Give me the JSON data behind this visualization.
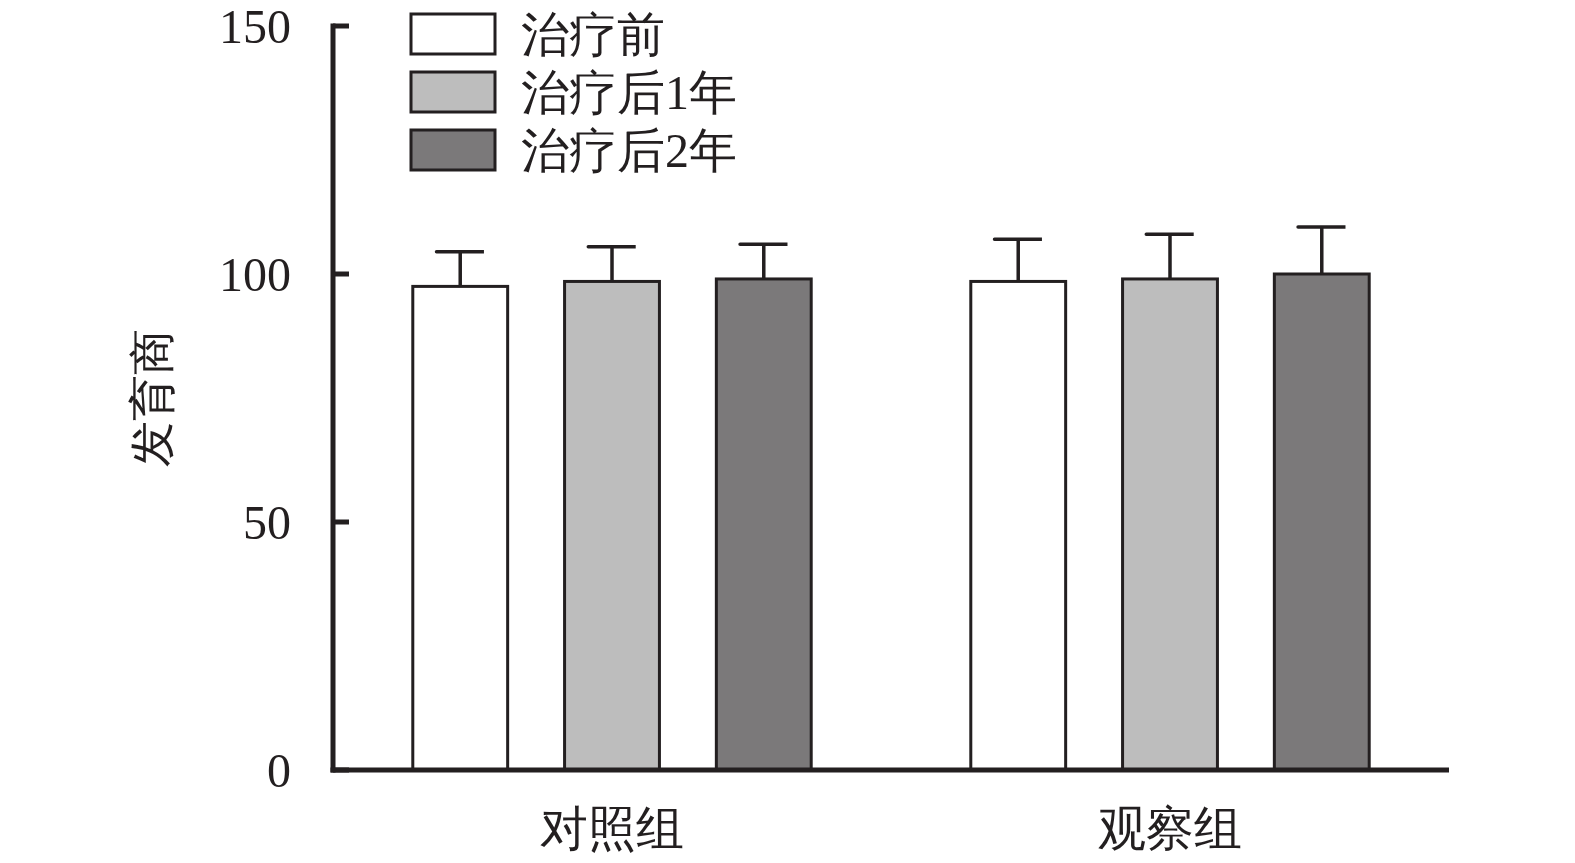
{
  "chart_data": {
    "type": "bar",
    "ylabel": "发育商",
    "categories": [
      "对照组",
      "观察组"
    ],
    "ylim": [
      0,
      150
    ],
    "yticks": [
      0,
      50,
      100,
      150
    ],
    "legend": "top left",
    "series": [
      {
        "name": "治疗前",
        "color": "#ffffff",
        "values": [
          97.5,
          98.5
        ],
        "errors": [
          [
            97.5,
            104.5
          ],
          [
            98.5,
            107
          ]
        ]
      },
      {
        "name": "治疗后1年",
        "color": "#bdbdbd",
        "values": [
          98.5,
          99
        ],
        "errors": [
          [
            98.5,
            105.5
          ],
          [
            99,
            108
          ]
        ]
      },
      {
        "name": "治疗后2年",
        "color": "#7b797a",
        "values": [
          99,
          100
        ],
        "errors": [
          [
            99,
            106
          ],
          [
            100,
            109.5
          ]
        ]
      }
    ]
  }
}
